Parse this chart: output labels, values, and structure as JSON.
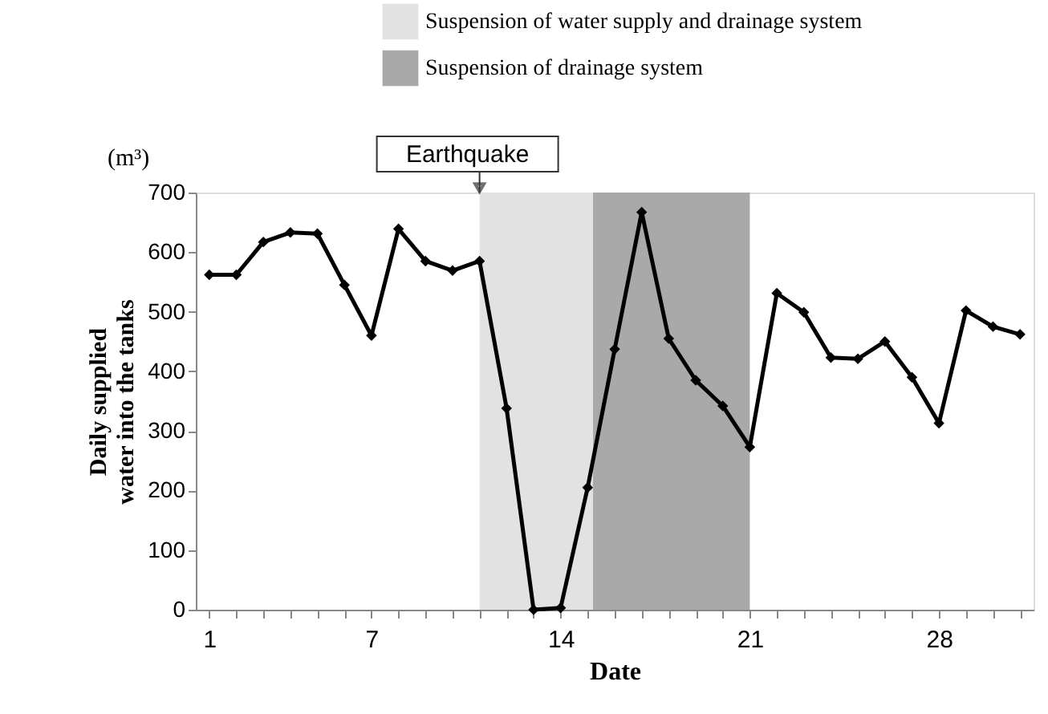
{
  "chart_data": {
    "type": "line",
    "xlabel": "Date",
    "ylabel": "Daily supplied water into the tanks",
    "x": [
      1,
      2,
      3,
      4,
      5,
      6,
      7,
      8,
      9,
      10,
      11,
      12,
      13,
      14,
      15,
      16,
      17,
      18,
      19,
      20,
      21,
      22,
      23,
      24,
      25,
      26,
      27,
      28,
      29,
      30,
      31
    ],
    "series": [
      {
        "color": "#000000",
        "values": [
          562,
          562,
          617,
          633,
          631,
          545,
          460,
          639,
          585,
          569,
          585,
          338,
          0,
          3,
          205,
          437,
          667,
          455,
          385,
          342,
          273,
          531,
          499,
          423,
          421,
          450,
          390,
          313,
          502,
          475,
          462
        ]
      }
    ],
    "xlim": [
      0.5,
      31.5
    ],
    "xticks": [
      1,
      {
        "value": 2,
        "label": null
      },
      {
        "value": 3,
        "label": null
      },
      {
        "value": 4,
        "label": null
      },
      {
        "value": 5,
        "label": null
      },
      {
        "value": 6,
        "label": null
      },
      7,
      {
        "value": 8,
        "label": null
      },
      {
        "value": 9,
        "label": null
      },
      {
        "value": 10,
        "label": null
      },
      {
        "value": 11,
        "label": null
      },
      {
        "value": 12,
        "label": null
      },
      {
        "value": 13,
        "label": null
      },
      14,
      {
        "value": 15,
        "label": null
      },
      {
        "value": 16,
        "label": null
      },
      {
        "value": 17,
        "label": null
      },
      {
        "value": 18,
        "label": null
      },
      {
        "value": 19,
        "label": null
      },
      {
        "value": 20,
        "label": null
      },
      21,
      {
        "value": 22,
        "label": null
      },
      {
        "value": 23,
        "label": null
      },
      {
        "value": 24,
        "label": null
      },
      {
        "value": 25,
        "label": null
      },
      {
        "value": 26,
        "label": null
      },
      {
        "value": 27,
        "label": null
      },
      28,
      {
        "value": 29,
        "label": null
      },
      {
        "value": 30,
        "label": null
      },
      {
        "value": 31,
        "label": null
      }
    ],
    "ylim": [
      0,
      700
    ],
    "yticks": [
      0,
      100,
      200,
      300,
      400,
      500,
      600,
      700
    ],
    "bands": [
      {
        "axis": "x",
        "from": 11,
        "to": 15.2,
        "label": "Suspension of water supply and drainage system",
        "color": "#e2e2e2"
      },
      {
        "axis": "x",
        "from": 15.2,
        "to": 21,
        "label": "Suspension of drainage system",
        "color": "#a9a9a9"
      }
    ],
    "annotations": [
      "(m³)",
      {
        "text": "Earthquake",
        "x": 11,
        "y": 700
      }
    ],
    "marker": "diamond",
    "line_style": "solid",
    "grid": false,
    "legend": "top"
  }
}
